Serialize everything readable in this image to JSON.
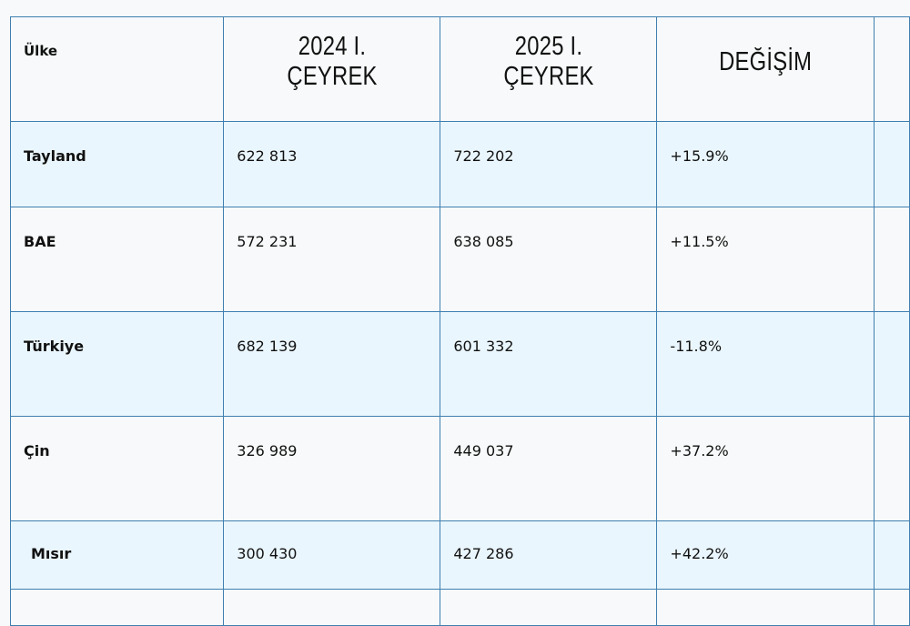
{
  "table": {
    "headers": [
      "Ülke",
      "2024 I. ÇEYREK",
      "2025 I. ÇEYREK",
      "DEĞİŞİM"
    ],
    "rows": [
      {
        "country": "Tayland",
        "q2024": "622 813",
        "q2025": "722 202",
        "change": "+15.9%"
      },
      {
        "country": "BAE",
        "q2024": "572 231",
        "q2025": "638 085",
        "change": "+11.5%"
      },
      {
        "country": "Türkiye",
        "q2024": "682 139",
        "q2025": "601 332",
        "change": "-11.8%"
      },
      {
        "country": "Çin",
        "q2024": "326 989",
        "q2025": "449 037",
        "change": "+37.2%"
      },
      {
        "country": "Mısır",
        "q2024": "300 430",
        "q2025": "427 286",
        "change": "+42.2%"
      }
    ]
  },
  "colors": {
    "border": "#3f7fb0",
    "row_tint": "#eaf6fd",
    "background": "#f7f9fa"
  }
}
